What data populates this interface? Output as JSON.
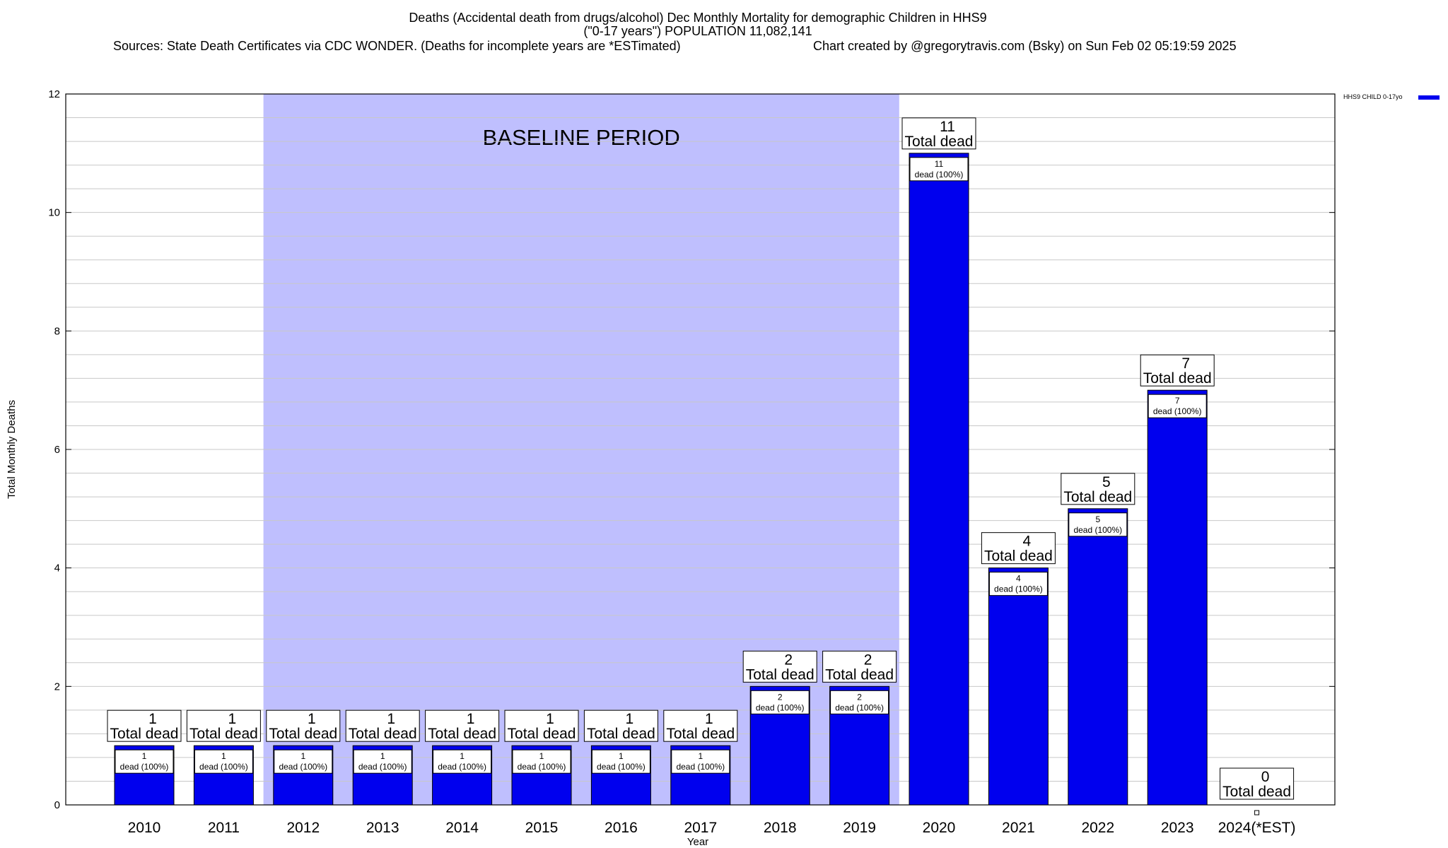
{
  "title": {
    "line1": "Deaths (Accidental death from drugs/alcohol) Dec Monthly Mortality for demographic Children in HHS9",
    "line2": "(\"0-17 years\") POPULATION 11,082,141",
    "line3_left": "Sources: State Death Certificates via CDC WONDER. (Deaths for incomplete years are *ESTimated)",
    "line3_right": "Chart created by @gregorytravis.com (Bsky) on Sun Feb 02 05:19:59 2025"
  },
  "colors": {
    "bar": "#0000ee",
    "baseline_band": "#bfbffe",
    "grid": "#c8c8c8"
  },
  "chart_data": {
    "type": "bar",
    "xlabel": "Year",
    "ylabel": "Total Monthly Deaths",
    "ylim": [
      0,
      12
    ],
    "y_ticks": [
      0,
      2,
      4,
      6,
      8,
      10,
      12
    ],
    "y_tick_labels": [
      "0",
      "2",
      "4",
      "6",
      "8",
      "10",
      "12"
    ],
    "grid": true,
    "categories": [
      "2010",
      "2011",
      "2012",
      "2013",
      "2014",
      "2015",
      "2016",
      "2017",
      "2018",
      "2019",
      "2020",
      "2021",
      "2022",
      "2023",
      "2024(*EST)"
    ],
    "series": [
      {
        "name": "HHS9 CHILD 0-17yo",
        "values": [
          1,
          1,
          1,
          1,
          1,
          1,
          1,
          1,
          2,
          2,
          11,
          4,
          5,
          7,
          0
        ]
      }
    ],
    "total_label_word": "Total dead",
    "inner_label_word": "dead (100%)",
    "baseline_period": {
      "label": "BASELINE PERIOD",
      "from": "2012",
      "to": "2019"
    },
    "legend_position": "top-right"
  }
}
